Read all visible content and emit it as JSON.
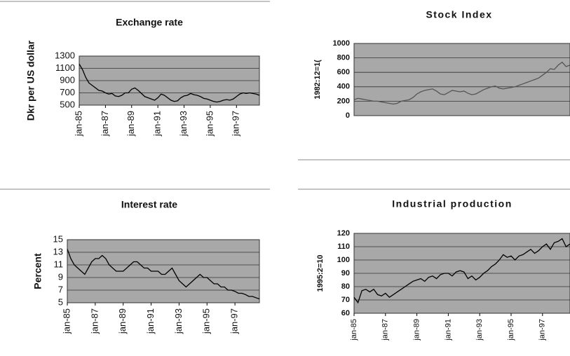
{
  "chart_data": [
    {
      "type": "line",
      "title": "Exchange rate",
      "y_label": "Dkr per US dollar",
      "categories": [
        "jan-85",
        null,
        null,
        null,
        null,
        null,
        null,
        null,
        "jan-87",
        null,
        null,
        null,
        null,
        null,
        null,
        null,
        "jan-89",
        null,
        null,
        null,
        null,
        null,
        null,
        null,
        "jan-91",
        null,
        null,
        null,
        null,
        null,
        null,
        null,
        "jan-93",
        null,
        null,
        null,
        null,
        null,
        null,
        null,
        "jan-95",
        null,
        null,
        null,
        null,
        null,
        null,
        null,
        "jan-97",
        null,
        null,
        null,
        null,
        null,
        null,
        null
      ],
      "values": [
        1170,
        1080,
        950,
        860,
        820,
        780,
        740,
        730,
        700,
        680,
        690,
        650,
        640,
        660,
        700,
        700,
        760,
        780,
        740,
        690,
        640,
        620,
        600,
        580,
        620,
        680,
        660,
        620,
        580,
        560,
        570,
        620,
        650,
        660,
        690,
        670,
        660,
        640,
        610,
        600,
        580,
        560,
        550,
        560,
        580,
        590,
        580,
        600,
        640,
        680,
        700,
        690,
        700,
        690,
        680,
        660
      ],
      "color": "#000000",
      "ylim": [
        500,
        1300
      ],
      "yticks": [
        500,
        700,
        900,
        1100,
        1300
      ],
      "grid": true
    },
    {
      "type": "line",
      "title": "Stock Index",
      "y_label": "1982:12=1(",
      "categories": [
        null,
        null,
        null,
        null,
        null,
        null,
        null,
        null,
        null,
        null,
        null,
        null,
        null,
        null,
        null,
        null,
        null,
        null,
        null,
        null,
        null,
        null,
        null,
        null,
        null,
        null,
        null,
        null,
        null,
        null,
        null,
        null,
        null,
        null,
        null,
        null,
        null,
        null,
        null,
        null,
        null,
        null,
        null,
        null,
        null,
        null,
        null,
        null,
        null,
        null,
        null,
        null,
        null,
        null,
        null,
        null
      ],
      "values": [
        220,
        240,
        230,
        220,
        210,
        200,
        200,
        190,
        180,
        170,
        160,
        170,
        200,
        210,
        220,
        250,
        300,
        330,
        350,
        360,
        370,
        340,
        300,
        290,
        320,
        350,
        340,
        330,
        340,
        310,
        290,
        300,
        330,
        360,
        380,
        400,
        410,
        380,
        370,
        380,
        390,
        400,
        420,
        440,
        460,
        480,
        500,
        520,
        560,
        600,
        650,
        640,
        700,
        740,
        680,
        700
      ],
      "color": "#555555",
      "ylim": [
        0,
        1000
      ],
      "yticks": [
        0,
        200,
        400,
        600,
        800,
        1000
      ],
      "grid": true
    },
    {
      "type": "line",
      "title": "Interest rate",
      "y_label": "Percent",
      "categories": [
        "jan-85",
        null,
        null,
        null,
        null,
        null,
        null,
        null,
        "jan-87",
        null,
        null,
        null,
        null,
        null,
        null,
        null,
        "jan-89",
        null,
        null,
        null,
        null,
        null,
        null,
        null,
        "jan-91",
        null,
        null,
        null,
        null,
        null,
        null,
        null,
        "jan-93",
        null,
        null,
        null,
        null,
        null,
        null,
        null,
        "jan-95",
        null,
        null,
        null,
        null,
        null,
        null,
        null,
        "jan-97",
        null,
        null,
        null,
        null,
        null,
        null,
        null
      ],
      "values": [
        13.5,
        12,
        11,
        10.5,
        10,
        9.5,
        10.5,
        11.5,
        12,
        12,
        12.5,
        12,
        11,
        10.5,
        10,
        10,
        10,
        10.5,
        11,
        11.5,
        11.5,
        11,
        10.5,
        10.5,
        10,
        10,
        10,
        9.5,
        9.5,
        10,
        10.5,
        9.5,
        8.5,
        8,
        7.5,
        8,
        8.5,
        9,
        9.5,
        9,
        9,
        8.5,
        8,
        8,
        7.5,
        7.5,
        7,
        7,
        6.8,
        6.5,
        6.5,
        6.3,
        6,
        6,
        5.8,
        5.6
      ],
      "color": "#000000",
      "ylim": [
        5,
        15
      ],
      "yticks": [
        5,
        7,
        9,
        11,
        13,
        15
      ],
      "grid": true
    },
    {
      "type": "line",
      "title": "Industrial production",
      "y_label": "1995:2=10",
      "categories": [
        "jan-85",
        null,
        null,
        null,
        null,
        null,
        null,
        null,
        "jan-87",
        null,
        null,
        null,
        null,
        null,
        null,
        null,
        "jan-89",
        null,
        null,
        null,
        null,
        null,
        null,
        null,
        "jan-91",
        null,
        null,
        null,
        null,
        null,
        null,
        null,
        "jan-93",
        null,
        null,
        null,
        null,
        null,
        null,
        null,
        "jan-95",
        null,
        null,
        null,
        null,
        null,
        null,
        null,
        "jan-97",
        null,
        null,
        null,
        null,
        null,
        null,
        null
      ],
      "values": [
        72,
        68,
        77,
        78,
        76,
        78,
        74,
        73,
        75,
        72,
        74,
        76,
        78,
        80,
        82,
        84,
        85,
        86,
        84,
        87,
        88,
        86,
        89,
        90,
        90,
        88,
        91,
        92,
        91,
        86,
        88,
        85,
        87,
        90,
        92,
        95,
        97,
        100,
        104,
        102,
        103,
        100,
        103,
        104,
        106,
        108,
        105,
        107,
        110,
        112,
        108,
        113,
        114,
        116,
        110,
        112
      ],
      "color": "#000000",
      "ylim": [
        60,
        120
      ],
      "yticks": [
        60,
        70,
        80,
        90,
        100,
        110,
        120
      ],
      "grid": true
    }
  ]
}
